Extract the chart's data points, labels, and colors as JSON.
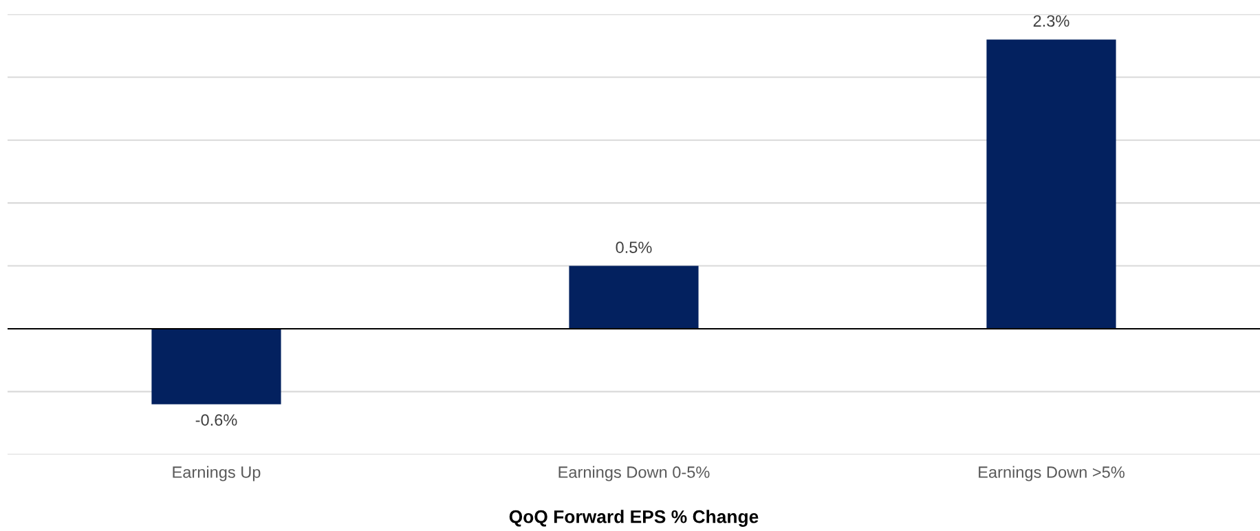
{
  "chart_data": {
    "type": "bar",
    "xlabel": "QoQ Forward EPS % Change",
    "categories": [
      "Earnings Up",
      "Earnings Down 0-5%",
      "Earnings Down >5%"
    ],
    "values": [
      -0.6,
      0.5,
      2.3
    ],
    "value_labels": [
      "-0.6%",
      "0.5%",
      "2.3%"
    ],
    "color": "#03215f",
    "ylim": [
      -1.0,
      2.5
    ],
    "yticks": [
      {
        "value": -1.0,
        "label": null
      },
      {
        "value": -0.5,
        "label": null
      },
      {
        "value": 0,
        "label": null
      },
      {
        "value": 0.5,
        "label": null
      },
      {
        "value": 1.0,
        "label": null
      },
      {
        "value": 1.5,
        "label": null
      },
      {
        "value": 2.0,
        "label": null
      },
      {
        "value": 2.5,
        "label": null
      }
    ],
    "ref_lines": [
      {
        "axis": "y",
        "value": 0,
        "color": "#000000"
      }
    ],
    "grid": "y",
    "legend": false,
    "tick_labels": "x"
  }
}
